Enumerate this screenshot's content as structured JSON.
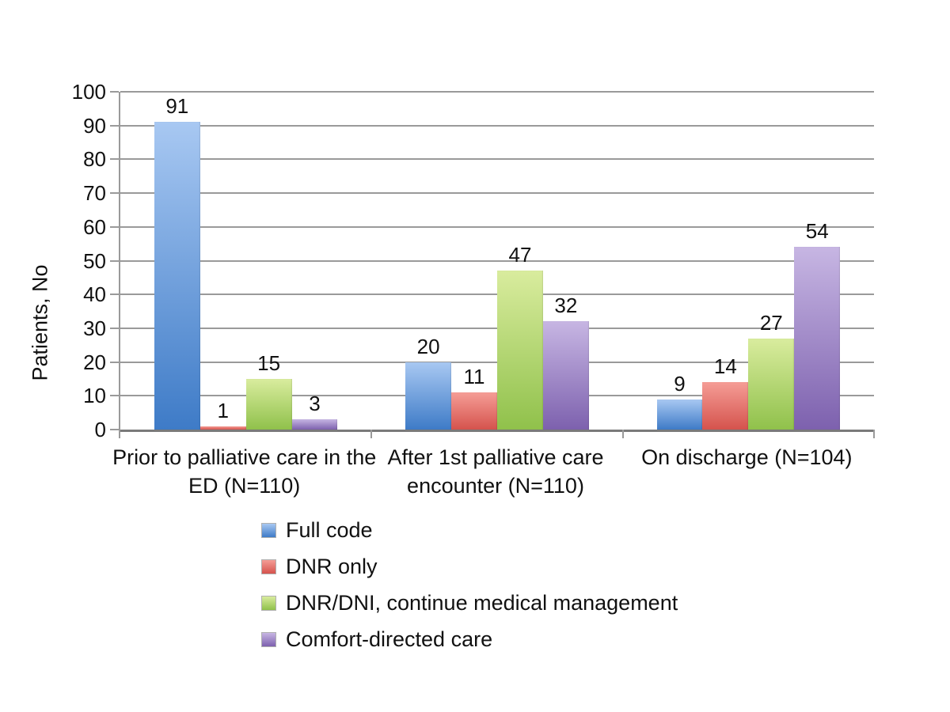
{
  "chart_data": {
    "type": "bar",
    "title": "",
    "ylabel": "Patients, No",
    "xlabel": "",
    "ylim": [
      0,
      100
    ],
    "ytick_interval": 10,
    "grid": true,
    "data_labels": true,
    "legend_position": "bottom-left",
    "categories": [
      "Prior to palliative care in the ED (N=110)",
      "After 1st palliative care encounter (N=110)",
      "On discharge (N=104)"
    ],
    "series": [
      {
        "name": "Full code",
        "values": [
          91,
          20,
          9
        ],
        "color_top": "#a8c8f2",
        "color_bottom": "#3e7bc7"
      },
      {
        "name": "DNR only",
        "values": [
          1,
          11,
          14
        ],
        "color_top": "#f59d96",
        "color_bottom": "#d5534d"
      },
      {
        "name": "DNR/DNI, continue medical management",
        "values": [
          15,
          47,
          27
        ],
        "color_top": "#d9ec9e",
        "color_bottom": "#90c14b"
      },
      {
        "name": "Comfort-directed care",
        "values": [
          3,
          32,
          54
        ],
        "color_top": "#c7b6e3",
        "color_bottom": "#7d61ae"
      }
    ],
    "colors": {
      "gridline": "#9a9a9a",
      "axis": "#7a7a7a",
      "text": "#111111"
    }
  }
}
